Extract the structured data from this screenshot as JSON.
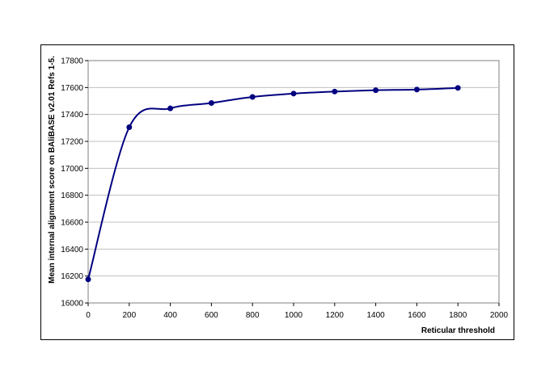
{
  "chart_data": {
    "type": "line",
    "title": "",
    "xlabel": "Reticular threshold",
    "ylabel": "Mean internal alignment score on BAliBASE v2.01 Refs 1-5.",
    "xlim": [
      0,
      2000
    ],
    "ylim": [
      16000,
      17800
    ],
    "x_ticks": [
      0,
      200,
      400,
      600,
      800,
      1000,
      1200,
      1400,
      1600,
      1800,
      2000
    ],
    "y_ticks": [
      16000,
      16200,
      16400,
      16600,
      16800,
      17000,
      17200,
      17400,
      17600,
      17800
    ],
    "grid": "horizontal",
    "legend": "none",
    "smooth": true,
    "series": [
      {
        "color": "#000080",
        "x": [
          0,
          200,
          400,
          600,
          800,
          1000,
          1200,
          1400,
          1600,
          1800
        ],
        "y": [
          16175,
          17305,
          17445,
          17485,
          17530,
          17555,
          17570,
          17580,
          17585,
          17597
        ]
      }
    ]
  }
}
